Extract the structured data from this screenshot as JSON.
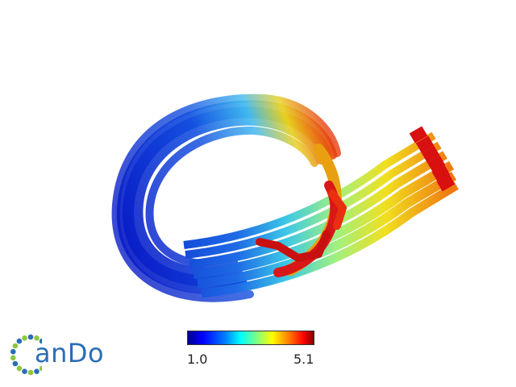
{
  "logo": {
    "text": "anDo"
  },
  "colorbar": {
    "min_label": "1.0",
    "max_label": "5.1",
    "colormap": [
      "#00008f",
      "#0000ff",
      "#0080ff",
      "#00ffff",
      "#80ff80",
      "#ffff00",
      "#ff8000",
      "#ff0000",
      "#800000"
    ]
  },
  "colors": {
    "logo_blue": "#2a6db5",
    "logo_green": "#8dc63f"
  }
}
